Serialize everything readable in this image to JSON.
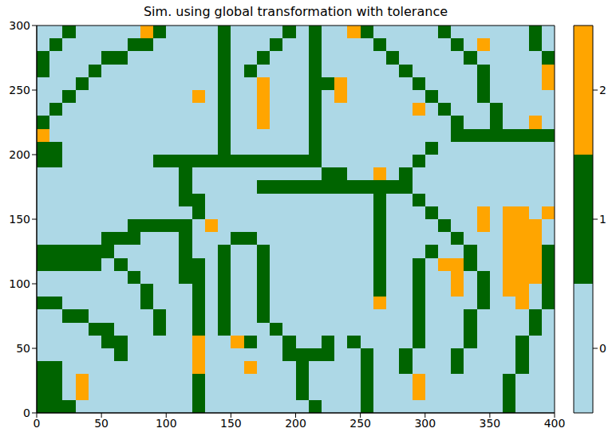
{
  "chart_data": {
    "type": "heatmap",
    "title": "Sim. using global transformation with tolerance",
    "xlim": [
      0,
      400
    ],
    "ylim": [
      0,
      300
    ],
    "xticks": [
      0,
      50,
      100,
      150,
      200,
      250,
      300,
      350,
      400
    ],
    "yticks": [
      0,
      50,
      100,
      150,
      200,
      250,
      300
    ],
    "colors": [
      "#add8e6",
      "#006400",
      "#ffa500"
    ],
    "colorbar": {
      "range": [
        -0.5,
        2.5
      ],
      "ticks": [
        0,
        1,
        2
      ]
    },
    "cells": [
      [
        0,
        0,
        1,
        0,
        0,
        0,
        0,
        0,
        2,
        1,
        0,
        0,
        0,
        0,
        1,
        0,
        0,
        0,
        0,
        1,
        0,
        1,
        0,
        0,
        2,
        1,
        0,
        0,
        0,
        0,
        0,
        1,
        0,
        0,
        0,
        0,
        0,
        0,
        1,
        0
      ],
      [
        0,
        1,
        0,
        0,
        0,
        0,
        0,
        1,
        1,
        0,
        0,
        0,
        0,
        0,
        1,
        0,
        0,
        0,
        1,
        0,
        0,
        1,
        0,
        0,
        0,
        0,
        1,
        0,
        0,
        0,
        0,
        0,
        1,
        0,
        2,
        0,
        0,
        0,
        1,
        0
      ],
      [
        1,
        0,
        0,
        0,
        0,
        1,
        1,
        0,
        0,
        0,
        0,
        0,
        0,
        0,
        1,
        0,
        0,
        1,
        0,
        0,
        0,
        1,
        0,
        0,
        0,
        0,
        0,
        1,
        0,
        0,
        0,
        0,
        0,
        1,
        0,
        0,
        0,
        0,
        0,
        1
      ],
      [
        1,
        0,
        0,
        0,
        1,
        0,
        0,
        0,
        0,
        0,
        0,
        0,
        0,
        0,
        1,
        0,
        1,
        0,
        0,
        0,
        0,
        1,
        0,
        0,
        0,
        0,
        0,
        0,
        1,
        0,
        0,
        0,
        0,
        0,
        1,
        0,
        0,
        0,
        0,
        2
      ],
      [
        0,
        0,
        0,
        1,
        0,
        0,
        0,
        0,
        0,
        0,
        0,
        0,
        0,
        0,
        1,
        0,
        0,
        2,
        0,
        0,
        0,
        1,
        1,
        2,
        0,
        0,
        0,
        0,
        0,
        1,
        0,
        0,
        0,
        0,
        1,
        0,
        0,
        0,
        0,
        2
      ],
      [
        0,
        0,
        1,
        0,
        0,
        0,
        0,
        0,
        0,
        0,
        0,
        0,
        2,
        0,
        1,
        0,
        0,
        2,
        0,
        0,
        0,
        1,
        0,
        2,
        0,
        0,
        0,
        0,
        0,
        0,
        1,
        0,
        0,
        0,
        1,
        0,
        0,
        0,
        0,
        0
      ],
      [
        0,
        1,
        0,
        0,
        0,
        0,
        0,
        0,
        0,
        0,
        0,
        0,
        0,
        0,
        1,
        0,
        0,
        2,
        0,
        0,
        0,
        1,
        0,
        0,
        0,
        0,
        0,
        0,
        0,
        2,
        0,
        1,
        0,
        0,
        0,
        1,
        0,
        0,
        0,
        0
      ],
      [
        1,
        0,
        0,
        0,
        0,
        0,
        0,
        0,
        0,
        0,
        0,
        0,
        0,
        0,
        1,
        0,
        0,
        2,
        0,
        0,
        0,
        1,
        0,
        0,
        0,
        0,
        0,
        0,
        0,
        0,
        0,
        0,
        1,
        0,
        0,
        1,
        0,
        0,
        2,
        0
      ],
      [
        2,
        0,
        0,
        0,
        0,
        0,
        0,
        0,
        0,
        0,
        0,
        0,
        0,
        0,
        1,
        0,
        0,
        0,
        0,
        0,
        0,
        1,
        0,
        0,
        0,
        0,
        0,
        0,
        0,
        0,
        0,
        0,
        1,
        1,
        1,
        1,
        1,
        1,
        1,
        1
      ],
      [
        1,
        1,
        0,
        0,
        0,
        0,
        0,
        0,
        0,
        0,
        0,
        0,
        0,
        0,
        1,
        0,
        0,
        0,
        0,
        0,
        0,
        1,
        0,
        0,
        0,
        0,
        0,
        0,
        0,
        0,
        1,
        0,
        0,
        0,
        0,
        0,
        0,
        0,
        0,
        0
      ],
      [
        1,
        1,
        0,
        0,
        0,
        0,
        0,
        0,
        0,
        1,
        1,
        1,
        1,
        1,
        1,
        1,
        1,
        1,
        1,
        1,
        1,
        1,
        0,
        0,
        0,
        0,
        0,
        0,
        0,
        1,
        0,
        0,
        0,
        0,
        0,
        0,
        0,
        0,
        0,
        0
      ],
      [
        0,
        0,
        0,
        0,
        0,
        0,
        0,
        0,
        0,
        0,
        0,
        1,
        0,
        0,
        0,
        0,
        0,
        0,
        0,
        0,
        0,
        0,
        1,
        1,
        0,
        0,
        2,
        0,
        1,
        0,
        0,
        0,
        0,
        0,
        0,
        0,
        0,
        0,
        0,
        0
      ],
      [
        0,
        0,
        0,
        0,
        0,
        0,
        0,
        0,
        0,
        0,
        0,
        1,
        0,
        0,
        0,
        0,
        0,
        1,
        1,
        1,
        1,
        1,
        1,
        1,
        1,
        1,
        1,
        1,
        1,
        0,
        0,
        0,
        0,
        0,
        0,
        0,
        0,
        0,
        0,
        0
      ],
      [
        0,
        0,
        0,
        0,
        0,
        0,
        0,
        0,
        0,
        0,
        0,
        1,
        1,
        0,
        0,
        0,
        0,
        0,
        0,
        0,
        0,
        0,
        0,
        0,
        0,
        0,
        1,
        0,
        0,
        1,
        0,
        0,
        0,
        0,
        0,
        0,
        0,
        0,
        0,
        0
      ],
      [
        0,
        0,
        0,
        0,
        0,
        0,
        0,
        0,
        0,
        0,
        0,
        0,
        1,
        0,
        0,
        0,
        0,
        0,
        0,
        0,
        0,
        0,
        0,
        0,
        0,
        0,
        1,
        0,
        0,
        0,
        1,
        0,
        0,
        0,
        2,
        0,
        2,
        2,
        0,
        2
      ],
      [
        0,
        0,
        0,
        0,
        0,
        0,
        0,
        1,
        1,
        1,
        1,
        1,
        0,
        2,
        0,
        0,
        0,
        0,
        0,
        0,
        0,
        0,
        0,
        0,
        0,
        0,
        1,
        0,
        0,
        0,
        0,
        1,
        0,
        0,
        2,
        0,
        2,
        2,
        2,
        0
      ],
      [
        0,
        0,
        0,
        0,
        0,
        1,
        1,
        1,
        0,
        0,
        0,
        1,
        0,
        0,
        0,
        1,
        1,
        0,
        0,
        0,
        0,
        0,
        0,
        0,
        0,
        0,
        1,
        0,
        0,
        0,
        0,
        0,
        1,
        0,
        0,
        0,
        2,
        2,
        2,
        0
      ],
      [
        1,
        1,
        1,
        1,
        1,
        1,
        0,
        0,
        0,
        0,
        0,
        1,
        0,
        0,
        1,
        0,
        0,
        1,
        0,
        0,
        0,
        0,
        0,
        0,
        0,
        0,
        1,
        0,
        0,
        0,
        1,
        0,
        0,
        1,
        0,
        0,
        2,
        2,
        2,
        1
      ],
      [
        1,
        1,
        1,
        1,
        1,
        0,
        1,
        0,
        0,
        0,
        0,
        1,
        1,
        0,
        1,
        0,
        0,
        1,
        0,
        0,
        0,
        0,
        0,
        0,
        0,
        0,
        1,
        0,
        0,
        1,
        0,
        2,
        2,
        1,
        0,
        0,
        2,
        2,
        2,
        1
      ],
      [
        0,
        0,
        0,
        0,
        0,
        0,
        0,
        1,
        0,
        0,
        0,
        1,
        1,
        0,
        1,
        0,
        0,
        1,
        0,
        0,
        0,
        0,
        0,
        0,
        0,
        0,
        1,
        0,
        0,
        1,
        0,
        0,
        2,
        0,
        1,
        0,
        2,
        2,
        2,
        1
      ],
      [
        0,
        0,
        0,
        0,
        0,
        0,
        0,
        0,
        1,
        0,
        0,
        0,
        1,
        0,
        1,
        0,
        0,
        1,
        0,
        0,
        0,
        0,
        0,
        0,
        0,
        0,
        1,
        0,
        0,
        1,
        0,
        0,
        2,
        0,
        1,
        0,
        2,
        2,
        0,
        1
      ],
      [
        1,
        1,
        0,
        0,
        0,
        0,
        0,
        0,
        1,
        0,
        0,
        0,
        1,
        0,
        1,
        0,
        0,
        1,
        0,
        0,
        0,
        0,
        0,
        0,
        0,
        0,
        2,
        0,
        0,
        1,
        0,
        0,
        0,
        0,
        1,
        0,
        0,
        2,
        0,
        1
      ],
      [
        0,
        0,
        1,
        1,
        0,
        0,
        0,
        0,
        0,
        1,
        0,
        0,
        1,
        0,
        1,
        0,
        0,
        1,
        0,
        0,
        0,
        0,
        0,
        0,
        0,
        0,
        0,
        0,
        0,
        1,
        0,
        0,
        0,
        1,
        0,
        0,
        0,
        0,
        1,
        0
      ],
      [
        0,
        0,
        0,
        0,
        1,
        1,
        0,
        0,
        0,
        1,
        0,
        0,
        1,
        0,
        1,
        0,
        0,
        0,
        1,
        0,
        0,
        0,
        0,
        0,
        0,
        0,
        0,
        0,
        0,
        1,
        0,
        0,
        0,
        1,
        0,
        0,
        0,
        0,
        1,
        0
      ],
      [
        0,
        0,
        0,
        0,
        0,
        1,
        1,
        0,
        0,
        0,
        0,
        0,
        2,
        0,
        0,
        2,
        1,
        0,
        0,
        1,
        0,
        0,
        1,
        0,
        1,
        0,
        0,
        0,
        0,
        1,
        0,
        0,
        0,
        1,
        0,
        0,
        0,
        1,
        0,
        0
      ],
      [
        0,
        0,
        0,
        0,
        0,
        0,
        1,
        0,
        0,
        0,
        0,
        0,
        2,
        0,
        0,
        0,
        0,
        0,
        0,
        1,
        1,
        1,
        1,
        0,
        0,
        1,
        0,
        0,
        1,
        0,
        0,
        0,
        1,
        0,
        0,
        0,
        0,
        1,
        0,
        0
      ],
      [
        1,
        1,
        0,
        0,
        0,
        0,
        0,
        0,
        0,
        0,
        0,
        0,
        2,
        0,
        0,
        0,
        2,
        0,
        0,
        0,
        1,
        0,
        0,
        0,
        0,
        1,
        0,
        0,
        1,
        0,
        0,
        0,
        1,
        0,
        0,
        0,
        0,
        1,
        0,
        0
      ],
      [
        1,
        1,
        0,
        2,
        0,
        0,
        0,
        0,
        0,
        0,
        0,
        0,
        1,
        0,
        0,
        0,
        0,
        0,
        0,
        0,
        1,
        0,
        0,
        0,
        0,
        1,
        0,
        0,
        0,
        2,
        0,
        0,
        0,
        0,
        0,
        0,
        1,
        0,
        0,
        0
      ],
      [
        1,
        1,
        0,
        2,
        0,
        0,
        0,
        0,
        0,
        0,
        0,
        0,
        1,
        0,
        0,
        0,
        0,
        0,
        0,
        0,
        1,
        0,
        0,
        0,
        0,
        1,
        0,
        0,
        0,
        2,
        0,
        0,
        0,
        0,
        0,
        0,
        1,
        0,
        0,
        0
      ],
      [
        1,
        1,
        1,
        0,
        0,
        0,
        0,
        0,
        0,
        0,
        0,
        0,
        1,
        0,
        0,
        0,
        0,
        0,
        0,
        0,
        0,
        1,
        0,
        0,
        0,
        1,
        0,
        0,
        0,
        0,
        0,
        0,
        0,
        0,
        0,
        0,
        1,
        0,
        0,
        0
      ]
    ]
  }
}
